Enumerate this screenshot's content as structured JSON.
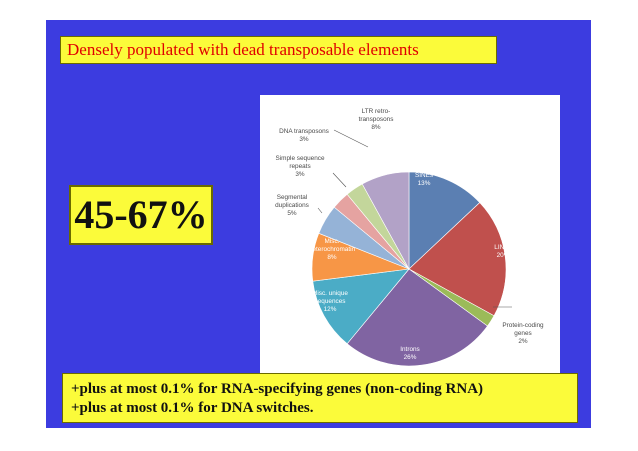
{
  "slide": {
    "title": "Densely populated with dead transposable elements",
    "big_number": "45-67%",
    "notes": [
      "+plus at most 0.1% for RNA-specifying genes (non-coding RNA)",
      "+plus at most 0.1% for DNA switches."
    ]
  },
  "colors": {
    "slide_background": "#3c3ce0",
    "callout_background": "#fbfb3a",
    "title_text": "#e00000"
  },
  "chart_data": {
    "type": "pie",
    "title": "",
    "slices": [
      {
        "label_lines": [
          "SINEs",
          "13%"
        ],
        "value": 13,
        "color": "#5b7fb2",
        "label_inside": true
      },
      {
        "label_lines": [
          "LINEs",
          "20%"
        ],
        "value": 20,
        "color": "#c0504d",
        "label_inside": true
      },
      {
        "label_lines": [
          "Protein-coding",
          "genes",
          "2%"
        ],
        "value": 2,
        "color": "#9bbb59",
        "label_inside": false
      },
      {
        "label_lines": [
          "Introns",
          "26%"
        ],
        "value": 26,
        "color": "#8064a2",
        "label_inside": true
      },
      {
        "label_lines": [
          "Misc. unique",
          "sequences",
          "12%"
        ],
        "value": 12,
        "color": "#4bacc6",
        "label_inside": true
      },
      {
        "label_lines": [
          "Misc.",
          "heterochromatin",
          "8%"
        ],
        "value": 8,
        "color": "#f79646",
        "label_inside": true
      },
      {
        "label_lines": [
          "Segmental",
          "duplications",
          "5%"
        ],
        "value": 5,
        "color": "#95b3d7",
        "label_inside": false
      },
      {
        "label_lines": [
          "Simple sequence",
          "repeats",
          "3%"
        ],
        "value": 3,
        "color": "#e5a3a1",
        "label_inside": false
      },
      {
        "label_lines": [
          "DNA transposons",
          "3%"
        ],
        "value": 3,
        "color": "#c3d69b",
        "label_inside": false
      },
      {
        "label_lines": [
          "LTR retro-",
          "transposons",
          "8%"
        ],
        "value": 8,
        "color": "#b2a2c7",
        "label_inside": false
      }
    ]
  }
}
